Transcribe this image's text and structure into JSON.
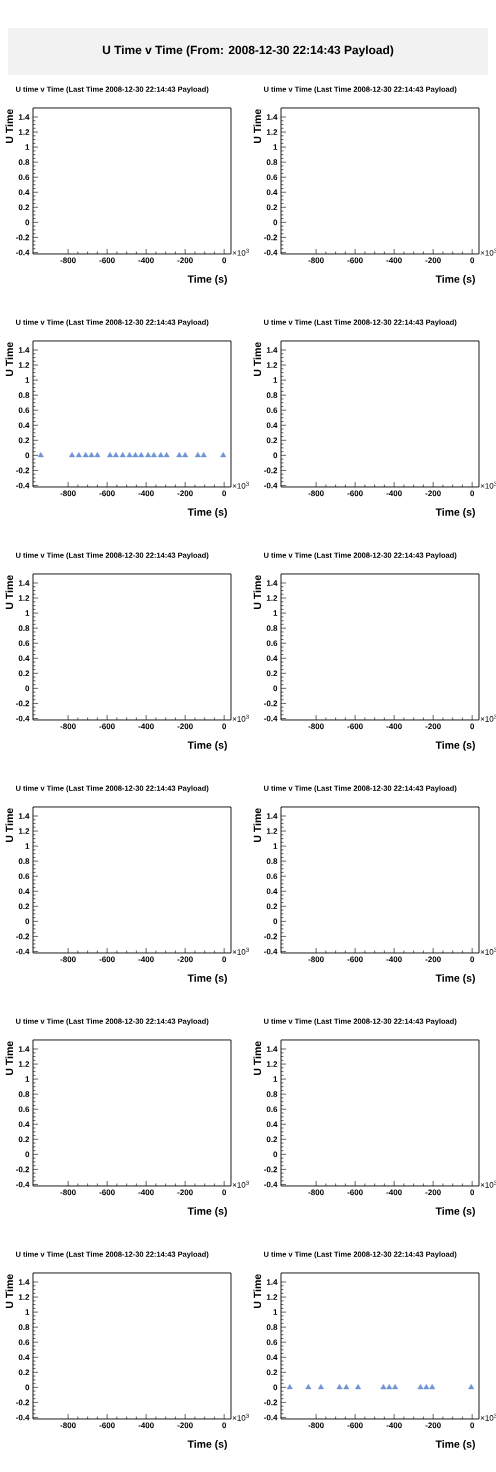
{
  "chart_data": [
    {
      "type": "other",
      "title": "U Time v Time (From: 2008-12-30 22:14:43 Payload)"
    },
    {
      "type": "scatter",
      "title": "U time v Time (Last Time 2008-12-30 22:14:43 Payload)",
      "xlabel": "Time (s)",
      "ylabel": "U Time",
      "xlim": [
        -980,
        35
      ],
      "ylim": [
        -0.42,
        1.52
      ],
      "xticks": [
        -800,
        -600,
        -400,
        -200,
        0
      ],
      "yticks": [
        -0.4,
        -0.2,
        0,
        0.2,
        0.4,
        0.6,
        0.8,
        1,
        1.2,
        1.4
      ],
      "annotations": [
        "×10$^{3}$"
      ]
    },
    {
      "type": "scatter",
      "title": "U time v Time (Last Time 2008-12-30 22:14:43 Payload)",
      "xlabel": "Time (s)",
      "ylabel": "U Time",
      "xlim": [
        -980,
        35
      ],
      "ylim": [
        -0.42,
        1.52
      ],
      "xticks": [
        -800,
        -600,
        -400,
        -200,
        0
      ],
      "yticks": [
        -0.4,
        -0.2,
        0,
        0.2,
        0.4,
        0.6,
        0.8,
        1,
        1.2,
        1.4
      ],
      "annotations": [
        "×10$^{3}$"
      ]
    },
    {
      "type": "scatter",
      "title": "U time v Time (Last Time 2008-12-30 22:14:43 Payload)",
      "xlabel": "Time (s)",
      "ylabel": "U Time",
      "x": [
        -940,
        -780,
        -745,
        -710,
        -680,
        -650,
        -585,
        -555,
        -520,
        -485,
        -455,
        -425,
        -390,
        -360,
        -325,
        -295,
        -230,
        -200,
        -135,
        -105,
        -5
      ],
      "values": [
        0,
        0,
        0,
        0,
        0,
        0,
        0,
        0,
        0,
        0,
        0,
        0,
        0,
        0,
        0,
        0,
        0,
        0,
        0,
        0,
        0
      ],
      "color": "#7094d4",
      "marker": "triangle",
      "xlim": [
        -980,
        35
      ],
      "ylim": [
        -0.42,
        1.52
      ],
      "xticks": [
        -800,
        -600,
        -400,
        -200,
        0
      ],
      "yticks": [
        -0.4,
        -0.2,
        0,
        0.2,
        0.4,
        0.6,
        0.8,
        1,
        1.2,
        1.4
      ],
      "annotations": [
        "×10$^{3}$"
      ]
    },
    {
      "type": "scatter",
      "title": "U time v Time (Last Time 2008-12-30 22:14:43 Payload)",
      "xlabel": "Time (s)",
      "ylabel": "U Time",
      "xlim": [
        -980,
        35
      ],
      "ylim": [
        -0.42,
        1.52
      ],
      "xticks": [
        -800,
        -600,
        -400,
        -200,
        0
      ],
      "yticks": [
        -0.4,
        -0.2,
        0,
        0.2,
        0.4,
        0.6,
        0.8,
        1,
        1.2,
        1.4
      ],
      "annotations": [
        "×10$^{3}$"
      ]
    },
    {
      "type": "scatter",
      "title": "U time v Time (Last Time 2008-12-30 22:14:43 Payload)",
      "xlabel": "Time (s)",
      "ylabel": "U Time",
      "xlim": [
        -980,
        35
      ],
      "ylim": [
        -0.42,
        1.52
      ],
      "xticks": [
        -800,
        -600,
        -400,
        -200,
        0
      ],
      "yticks": [
        -0.4,
        -0.2,
        0,
        0.2,
        0.4,
        0.6,
        0.8,
        1,
        1.2,
        1.4
      ],
      "annotations": [
        "×10$^{3}$"
      ]
    },
    {
      "type": "scatter",
      "title": "U time v Time (Last Time 2008-12-30 22:14:43 Payload)",
      "xlabel": "Time (s)",
      "ylabel": "U Time",
      "xlim": [
        -980,
        35
      ],
      "ylim": [
        -0.42,
        1.52
      ],
      "xticks": [
        -800,
        -600,
        -400,
        -200,
        0
      ],
      "yticks": [
        -0.4,
        -0.2,
        0,
        0.2,
        0.4,
        0.6,
        0.8,
        1,
        1.2,
        1.4
      ],
      "annotations": [
        "×10$^{3}$"
      ]
    },
    {
      "type": "scatter",
      "title": "U time v Time (Last Time 2008-12-30 22:14:43 Payload)",
      "xlabel": "Time (s)",
      "ylabel": "U Time",
      "xlim": [
        -980,
        35
      ],
      "ylim": [
        -0.42,
        1.52
      ],
      "xticks": [
        -800,
        -600,
        -400,
        -200,
        0
      ],
      "yticks": [
        -0.4,
        -0.2,
        0,
        0.2,
        0.4,
        0.6,
        0.8,
        1,
        1.2,
        1.4
      ],
      "annotations": [
        "×10$^{3}$"
      ]
    },
    {
      "type": "scatter",
      "title": "U time v Time (Last Time 2008-12-30 22:14:43 Payload)",
      "xlabel": "Time (s)",
      "ylabel": "U Time",
      "xlim": [
        -980,
        35
      ],
      "ylim": [
        -0.42,
        1.52
      ],
      "xticks": [
        -800,
        -600,
        -400,
        -200,
        0
      ],
      "yticks": [
        -0.4,
        -0.2,
        0,
        0.2,
        0.4,
        0.6,
        0.8,
        1,
        1.2,
        1.4
      ],
      "annotations": [
        "×10$^{3}$"
      ]
    },
    {
      "type": "scatter",
      "title": "U time v Time (Last Time 2008-12-30 22:14:43 Payload)",
      "xlabel": "Time (s)",
      "ylabel": "U Time",
      "xlim": [
        -980,
        35
      ],
      "ylim": [
        -0.42,
        1.52
      ],
      "xticks": [
        -800,
        -600,
        -400,
        -200,
        0
      ],
      "yticks": [
        -0.4,
        -0.2,
        0,
        0.2,
        0.4,
        0.6,
        0.8,
        1,
        1.2,
        1.4
      ],
      "annotations": [
        "×10$^{3}$"
      ]
    },
    {
      "type": "scatter",
      "title": "U time v Time (Last Time 2008-12-30 22:14:43 Payload)",
      "xlabel": "Time (s)",
      "ylabel": "U Time",
      "xlim": [
        -980,
        35
      ],
      "ylim": [
        -0.42,
        1.52
      ],
      "xticks": [
        -800,
        -600,
        -400,
        -200,
        0
      ],
      "yticks": [
        -0.4,
        -0.2,
        0,
        0.2,
        0.4,
        0.6,
        0.8,
        1,
        1.2,
        1.4
      ],
      "annotations": [
        "×10$^{3}$"
      ]
    },
    {
      "type": "scatter",
      "title": "U time v Time (Last Time 2008-12-30 22:14:43 Payload)",
      "xlabel": "Time (s)",
      "ylabel": "U Time",
      "xlim": [
        -980,
        35
      ],
      "ylim": [
        -0.42,
        1.52
      ],
      "xticks": [
        -800,
        -600,
        -400,
        -200,
        0
      ],
      "yticks": [
        -0.4,
        -0.2,
        0,
        0.2,
        0.4,
        0.6,
        0.8,
        1,
        1.2,
        1.4
      ],
      "annotations": [
        "×10$^{3}$"
      ]
    },
    {
      "type": "scatter",
      "title": "U time v Time (Last Time 2008-12-30 22:14:43 Payload)",
      "xlabel": "Time (s)",
      "ylabel": "U Time",
      "x": [
        -935,
        -840,
        -775,
        -680,
        -645,
        -585,
        -455,
        -425,
        -395,
        -265,
        -235,
        -205,
        -5
      ],
      "values": [
        0,
        0,
        0,
        0,
        0,
        0,
        0,
        0,
        0,
        0,
        0,
        0,
        0
      ],
      "color": "#7094d4",
      "marker": "triangle",
      "xlim": [
        -980,
        35
      ],
      "ylim": [
        -0.42,
        1.52
      ],
      "xticks": [
        -800,
        -600,
        -400,
        -200,
        0
      ],
      "yticks": [
        -0.4,
        -0.2,
        0,
        0.2,
        0.4,
        0.6,
        0.8,
        1,
        1.2,
        1.4
      ],
      "annotations": [
        "×10$^{3}$"
      ]
    }
  ]
}
